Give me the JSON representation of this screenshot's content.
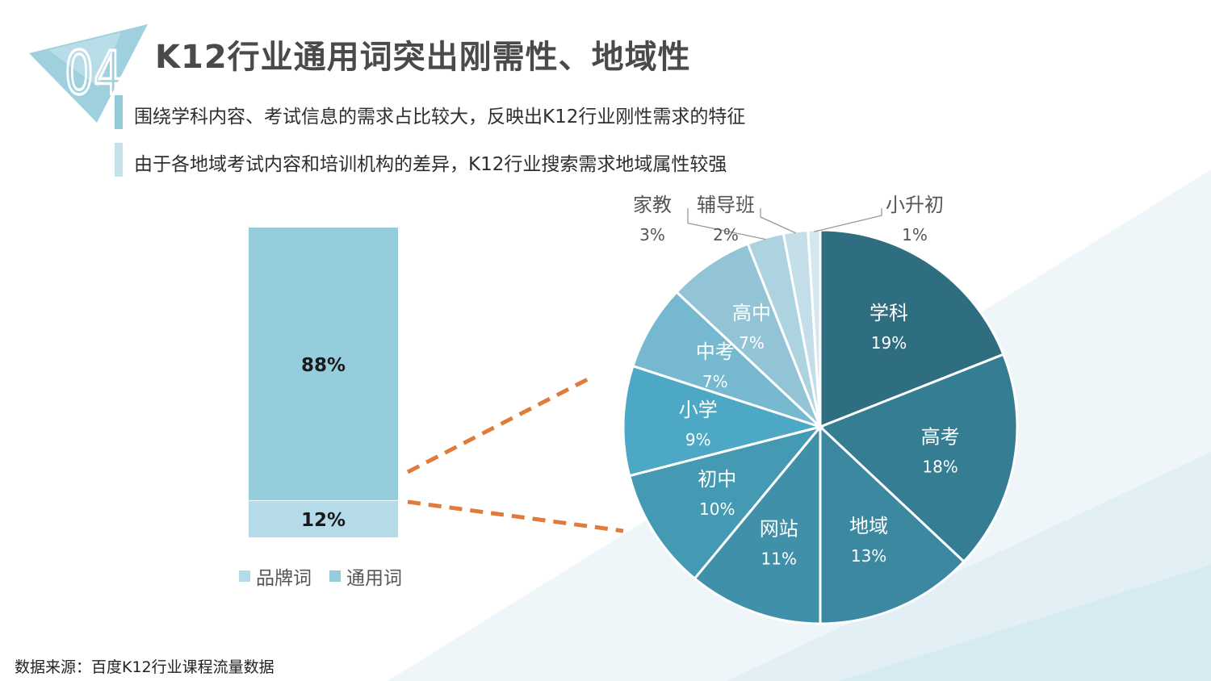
{
  "header": {
    "section_number": "04",
    "title": "K12行业通用词突出刚需性、地域性"
  },
  "bullets": [
    {
      "text": "围绕学科内容、考试信息的需求占比较大，反映出K12行业刚性需求的特征",
      "color": "#93c9d8"
    },
    {
      "text": "由于各地域考试内容和培训机构的差异，K12行业搜索需求地域属性较强",
      "color": "#c4e2ea"
    }
  ],
  "source": "数据来源：百度K12行业课程流量数据",
  "chart_data": [
    {
      "type": "bar",
      "stacked": true,
      "categories": [
        ""
      ],
      "series": [
        {
          "name": "品牌词",
          "values": [
            12
          ],
          "label": "12%",
          "color": "#b4dbe7"
        },
        {
          "name": "通用词",
          "values": [
            88
          ],
          "label": "88%",
          "color": "#96cddc"
        }
      ],
      "ylim": [
        0,
        100
      ],
      "legend": "bottom"
    },
    {
      "type": "pie",
      "slices": [
        {
          "label": "学科",
          "value": 19,
          "pct": "19%",
          "color": "#2e6e80"
        },
        {
          "label": "高考",
          "value": 18,
          "pct": "18%",
          "color": "#357d92"
        },
        {
          "label": "地域",
          "value": 13,
          "pct": "13%",
          "color": "#3b88a0"
        },
        {
          "label": "网站",
          "value": 11,
          "pct": "11%",
          "color": "#3f90a8"
        },
        {
          "label": "初中",
          "value": 10,
          "pct": "10%",
          "color": "#4499b3"
        },
        {
          "label": "小学",
          "value": 9,
          "pct": "9%",
          "color": "#4da8c6"
        },
        {
          "label": "中考",
          "value": 7,
          "pct": "7%",
          "color": "#75b8cf"
        },
        {
          "label": "高中",
          "value": 7,
          "pct": "7%",
          "color": "#92c4d6"
        },
        {
          "label": "家教",
          "value": 3,
          "pct": "3%",
          "color": "#aed3e0"
        },
        {
          "label": "辅导班",
          "value": 2,
          "pct": "2%",
          "color": "#c3dee8"
        },
        {
          "label": "小升初",
          "value": 1,
          "pct": "1%",
          "color": "#d4e7ee"
        }
      ]
    }
  ],
  "colors": {
    "accent_orange": "#e07b3a",
    "title_text": "#4a4a4a"
  }
}
